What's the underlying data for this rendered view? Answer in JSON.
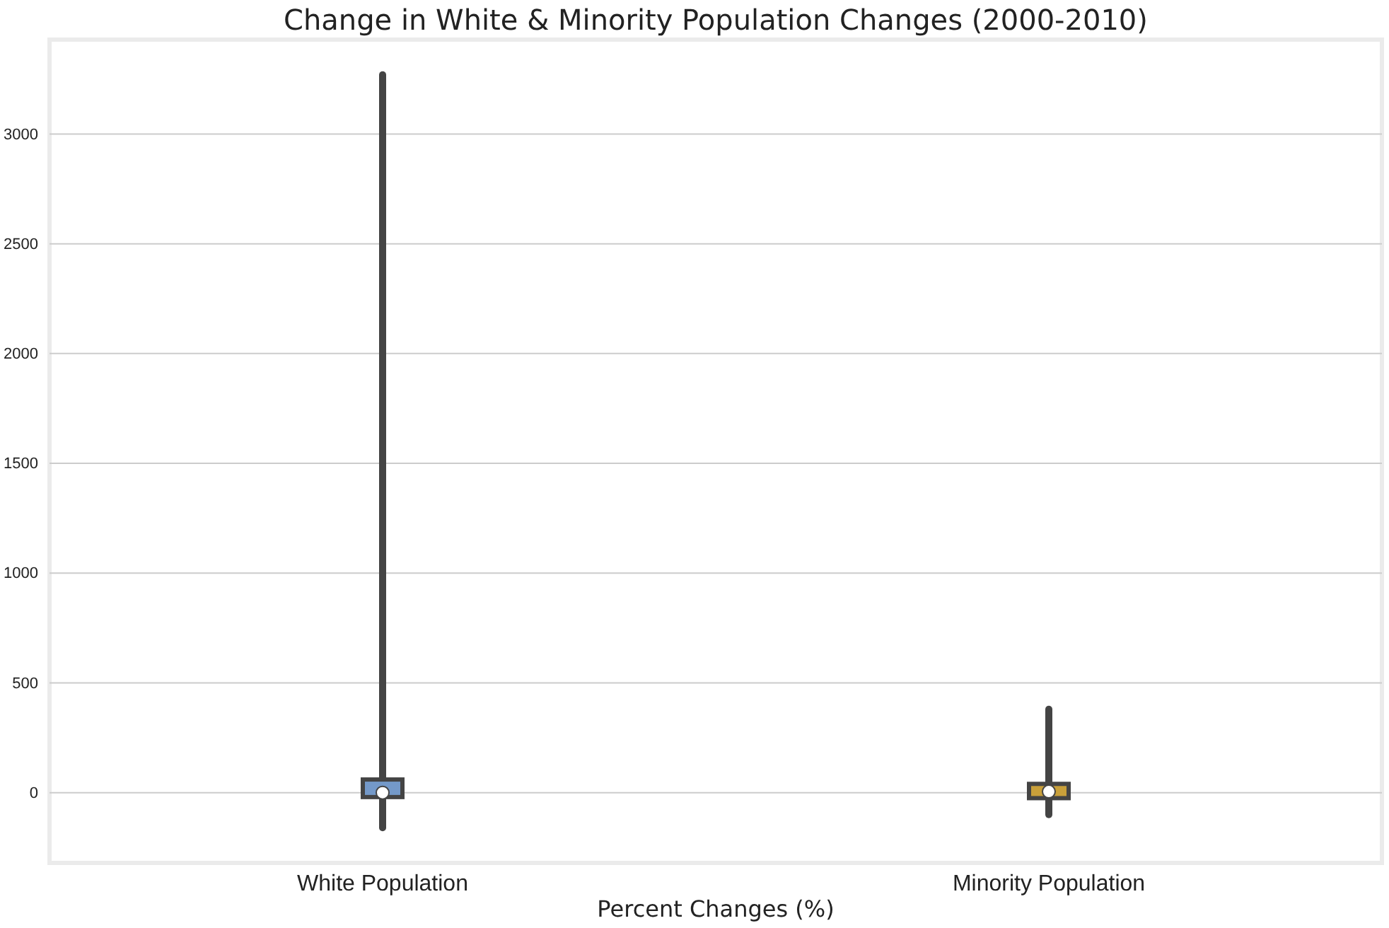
{
  "chart_data": {
    "type": "box",
    "title": "Change in White & Minority Population Changes (2000-2010)",
    "xlabel": "Percent Changes (%)",
    "categories": [
      "White Population",
      "Minority Population"
    ],
    "colors": [
      "#7499c9",
      "#c9a03a"
    ],
    "boxes": [
      {
        "low": -160,
        "q1": -20,
        "median": 0,
        "q3": 60,
        "high": 3270
      },
      {
        "low": -100,
        "q1": -25,
        "median": 5,
        "q3": 40,
        "high": 380
      }
    ],
    "ylim": [
      -320,
      3430
    ],
    "yticks": [
      0,
      500,
      1000,
      1500,
      2000,
      2500,
      3000
    ],
    "grid": "y"
  }
}
